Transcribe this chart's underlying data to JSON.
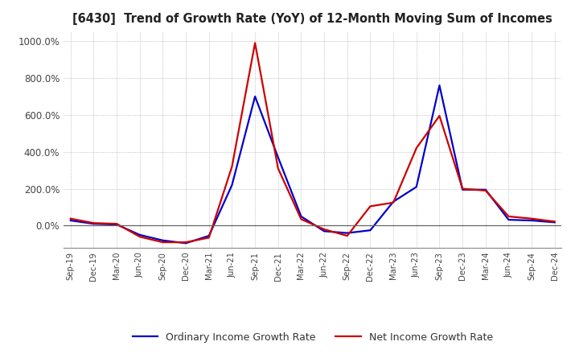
{
  "title": "[6430]  Trend of Growth Rate (YoY) of 12-Month Moving Sum of Incomes",
  "background_color": "#ffffff",
  "grid_color": "#999999",
  "x_labels": [
    "Sep-19",
    "Dec-19",
    "Mar-20",
    "Jun-20",
    "Sep-20",
    "Dec-20",
    "Mar-21",
    "Jun-21",
    "Sep-21",
    "Dec-21",
    "Mar-22",
    "Jun-22",
    "Sep-22",
    "Dec-22",
    "Mar-23",
    "Jun-23",
    "Sep-23",
    "Dec-23",
    "Mar-24",
    "Jun-24",
    "Sep-24",
    "Dec-24"
  ],
  "ordinary_income": [
    28,
    10,
    6,
    -50,
    -80,
    -95,
    -55,
    220,
    700,
    370,
    50,
    -30,
    -40,
    -25,
    130,
    210,
    760,
    195,
    195,
    32,
    28,
    18
  ],
  "net_income": [
    38,
    14,
    10,
    -60,
    -90,
    -90,
    -65,
    320,
    990,
    310,
    35,
    -20,
    -55,
    105,
    125,
    420,
    595,
    200,
    190,
    50,
    38,
    22
  ],
  "ordinary_color": "#0000cc",
  "net_color": "#cc0000",
  "legend_ordinary": "Ordinary Income Growth Rate",
  "legend_net": "Net Income Growth Rate",
  "line_width": 1.6,
  "ylim": [
    -120,
    1050
  ],
  "yticks": [
    0,
    200,
    400,
    600,
    800,
    1000
  ]
}
